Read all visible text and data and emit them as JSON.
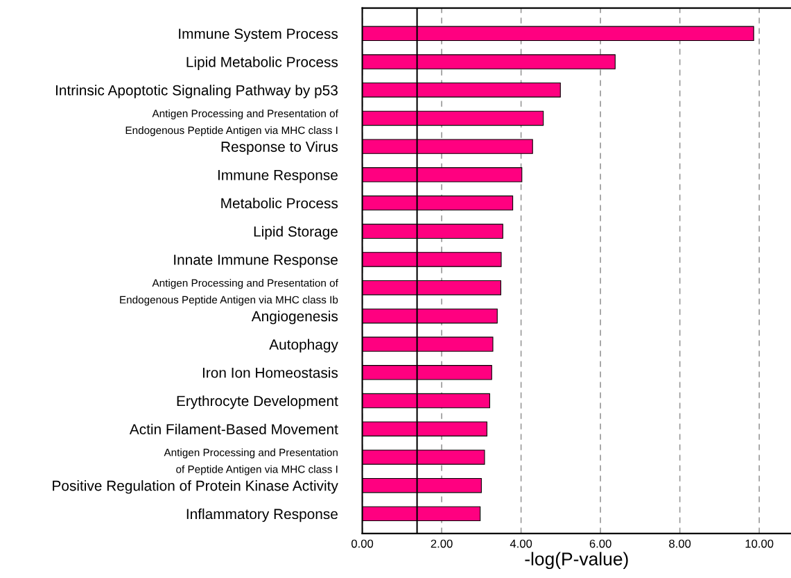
{
  "chart_data": {
    "type": "bar",
    "orientation": "horizontal",
    "xlabel": "-log(P-value)",
    "categories": [
      "Immune System Process",
      "Lipid Metabolic Process",
      "Intrinsic Apoptotic Signaling Pathway by p53",
      "Antigen Processing and Presentation of\nEndogenous Peptide Antigen via MHC class I",
      "Response to Virus",
      "Immune Response",
      "Metabolic Process",
      "Lipid Storage",
      "Innate Immune Response",
      "Antigen Processing and Presentation of\nEndogenous Peptide Antigen via MHC class Ib",
      "Angiogenesis",
      "Autophagy",
      "Iron Ion Homeostasis",
      "Erythrocyte Development",
      "Actin Filament-Based Movement",
      "Antigen Processing and Presentation\nof Peptide Antigen via MHC class I",
      "Positive Regulation of Protein Kinase Activity",
      "Inflammatory Response"
    ],
    "values": [
      9.86,
      6.37,
      4.99,
      4.56,
      4.29,
      4.02,
      3.79,
      3.54,
      3.5,
      3.49,
      3.4,
      3.29,
      3.26,
      3.21,
      3.14,
      3.08,
      3.0,
      2.97
    ],
    "color": "#ff0080",
    "xlim": [
      0,
      10.8
    ],
    "xticks": [
      {
        "value": 0,
        "label": "0.00"
      },
      {
        "value": 2,
        "label": "2.00"
      },
      {
        "value": 4,
        "label": "4.00"
      },
      {
        "value": 6,
        "label": "6.00"
      },
      {
        "value": 8,
        "label": "8.00"
      },
      {
        "value": 10,
        "label": "10.00"
      }
    ],
    "ref_lines": [
      {
        "axis": "x",
        "value": 1.38,
        "label": null,
        "color": "#000000",
        "line_style": "solid"
      }
    ],
    "grid": "x",
    "legend": false
  }
}
